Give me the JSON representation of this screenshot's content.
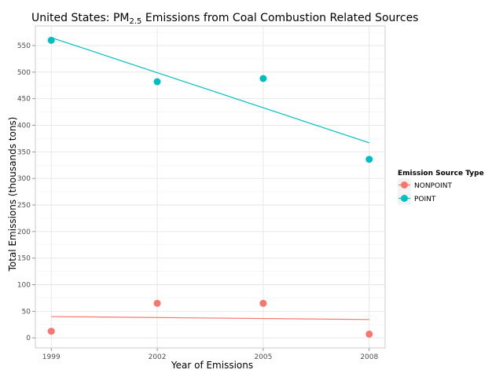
{
  "chart_data": {
    "type": "scatter",
    "title": {
      "prefix": "United States: PM",
      "subscript": "2.5",
      "suffix": " Emissions from Coal Combustion Related Sources"
    },
    "xlabel": "Year of Emissions",
    "ylabel": "Total Emissions (thousands tons)",
    "x_ticks": [
      1999,
      2002,
      2005,
      2008
    ],
    "y_ticks": [
      0,
      50,
      100,
      150,
      200,
      250,
      300,
      350,
      400,
      450,
      500,
      550
    ],
    "xlim": [
      1998.55,
      2008.45
    ],
    "ylim": [
      -19,
      587
    ],
    "grid": true,
    "legend": {
      "title": "Emission Source Type",
      "placement": "right"
    },
    "series": [
      {
        "name": "NONPOINT",
        "color": "#F8766D",
        "x": [
          1999,
          2002,
          2005,
          2008
        ],
        "y": [
          12.5,
          65,
          65,
          7
        ],
        "trend": {
          "x": [
            1999,
            2008
          ],
          "y": [
            40,
            34.5
          ]
        }
      },
      {
        "name": "POINT",
        "color": "#00BFC4",
        "x": [
          1999,
          2002,
          2005,
          2008
        ],
        "y": [
          560,
          482,
          488,
          336
        ],
        "trend": {
          "x": [
            1999,
            2008
          ],
          "y": [
            565,
            367
          ]
        }
      }
    ]
  }
}
